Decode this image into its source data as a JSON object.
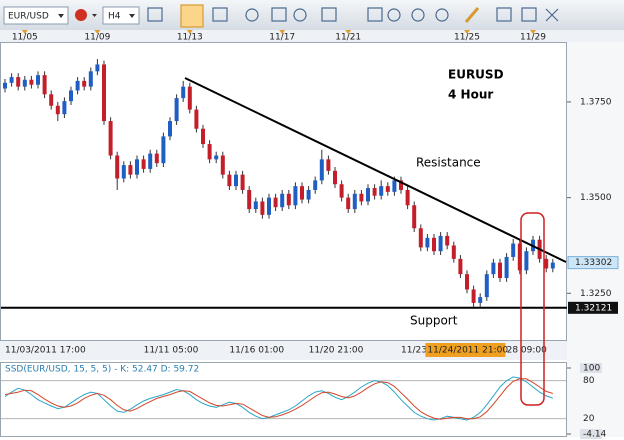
{
  "toolbar": {
    "symbol": "EUR/USD",
    "timeframe": "H4"
  },
  "chart_data": [
    {
      "type": "candlestick",
      "annotations": [
        "EURUSD",
        "4 Hour",
        "Resistance",
        "Support"
      ],
      "categories": [
        "11/03/2011 17:00",
        null,
        null,
        null,
        null,
        null,
        null,
        null,
        null,
        null,
        null,
        null,
        null,
        null,
        null,
        null,
        null,
        null,
        null,
        null,
        null,
        "11/11 05:00",
        null,
        null,
        null,
        null,
        null,
        null,
        null,
        null,
        null,
        null,
        null,
        null,
        "11/16 01:00",
        null,
        null,
        null,
        null,
        null,
        null,
        null,
        null,
        null,
        null,
        null,
        "11/20 21:00",
        null,
        null,
        null,
        null,
        null,
        null,
        null,
        null,
        null,
        null,
        null,
        null,
        null,
        "11/23",
        null,
        null,
        null,
        "11/24/2011 21:00",
        null,
        null,
        null,
        null,
        null,
        null,
        null,
        null,
        null,
        null,
        null,
        "28 09:00",
        null,
        null,
        null,
        null,
        null,
        null,
        null
      ],
      "top_categories": [
        null,
        null,
        null,
        "11/05",
        null,
        null,
        null,
        null,
        null,
        null,
        null,
        null,
        null,
        null,
        "11/09",
        null,
        null,
        null,
        null,
        null,
        null,
        null,
        null,
        null,
        null,
        null,
        null,
        null,
        "11/13",
        null,
        null,
        null,
        null,
        null,
        null,
        null,
        null,
        null,
        null,
        null,
        null,
        null,
        "11/17",
        null,
        null,
        null,
        null,
        null,
        null,
        null,
        null,
        null,
        "11/21",
        null,
        null,
        null,
        null,
        null,
        null,
        null,
        null,
        null,
        null,
        null,
        null,
        null,
        null,
        null,
        null,
        null,
        "11/25",
        null,
        null,
        null,
        null,
        null,
        null,
        null,
        null,
        null,
        "11/29",
        null,
        null,
        null
      ],
      "open": [
        1.3785,
        1.38,
        1.3815,
        1.379,
        1.3808,
        1.3795,
        1.382,
        1.377,
        1.374,
        1.3718,
        1.3752,
        1.378,
        1.3805,
        1.379,
        1.383,
        1.3848,
        1.37,
        1.361,
        1.355,
        1.3585,
        1.356,
        1.36,
        1.3575,
        1.3615,
        1.359,
        1.366,
        1.37,
        1.376,
        1.379,
        1.373,
        1.368,
        1.364,
        1.36,
        1.361,
        1.356,
        1.353,
        1.356,
        1.352,
        1.347,
        1.349,
        1.3455,
        1.35,
        1.3475,
        1.351,
        1.348,
        1.353,
        1.3495,
        1.352,
        1.3545,
        1.36,
        1.357,
        1.3535,
        1.35,
        1.347,
        1.351,
        1.349,
        1.3525,
        1.3505,
        1.353,
        1.3515,
        1.3545,
        1.352,
        1.348,
        1.342,
        1.337,
        1.3395,
        1.336,
        1.34,
        1.3375,
        1.334,
        1.33,
        1.326,
        1.3225,
        1.324,
        1.33,
        1.333,
        1.329,
        1.3345,
        1.338,
        1.331,
        1.336,
        1.339,
        1.334,
        1.3315
      ],
      "high": [
        1.381,
        1.3825,
        1.3825,
        1.3818,
        1.3818,
        1.383,
        1.383,
        1.378,
        1.375,
        1.3762,
        1.379,
        1.3815,
        1.3815,
        1.384,
        1.3862,
        1.3858,
        1.371,
        1.362,
        1.3595,
        1.3595,
        1.361,
        1.361,
        1.3625,
        1.3625,
        1.367,
        1.371,
        1.377,
        1.3805,
        1.38,
        1.374,
        1.369,
        1.365,
        1.362,
        1.362,
        1.357,
        1.357,
        1.357,
        1.353,
        1.35,
        1.35,
        1.351,
        1.351,
        1.352,
        1.352,
        1.354,
        1.354,
        1.353,
        1.3555,
        1.3625,
        1.361,
        1.358,
        1.3545,
        1.351,
        1.352,
        1.352,
        1.3535,
        1.3535,
        1.3545,
        1.354,
        1.3555,
        1.3555,
        1.353,
        1.349,
        1.343,
        1.3405,
        1.3405,
        1.341,
        1.341,
        1.3385,
        1.335,
        1.331,
        1.327,
        1.325,
        1.331,
        1.334,
        1.334,
        1.3355,
        1.3392,
        1.339,
        1.337,
        1.34,
        1.34,
        1.335,
        1.334
      ],
      "low": [
        1.3775,
        1.379,
        1.378,
        1.378,
        1.3785,
        1.3785,
        1.376,
        1.373,
        1.37,
        1.3708,
        1.3742,
        1.377,
        1.378,
        1.378,
        1.382,
        1.369,
        1.36,
        1.352,
        1.354,
        1.355,
        1.355,
        1.3565,
        1.3565,
        1.358,
        1.358,
        1.365,
        1.369,
        1.375,
        1.372,
        1.367,
        1.363,
        1.359,
        1.359,
        1.355,
        1.352,
        1.352,
        1.351,
        1.346,
        1.346,
        1.3445,
        1.3445,
        1.3465,
        1.3465,
        1.347,
        1.347,
        1.3485,
        1.3485,
        1.351,
        1.3535,
        1.356,
        1.3525,
        1.349,
        1.346,
        1.346,
        1.348,
        1.348,
        1.3495,
        1.3495,
        1.3505,
        1.3505,
        1.351,
        1.347,
        1.341,
        1.336,
        1.336,
        1.335,
        1.335,
        1.3365,
        1.333,
        1.329,
        1.325,
        1.321,
        1.3215,
        1.323,
        1.329,
        1.328,
        1.328,
        1.3335,
        1.33,
        1.33,
        1.335,
        1.333,
        1.3305,
        1.3305
      ],
      "close": [
        1.38,
        1.3815,
        1.379,
        1.3808,
        1.3795,
        1.382,
        1.377,
        1.374,
        1.3718,
        1.3752,
        1.378,
        1.3805,
        1.379,
        1.383,
        1.3848,
        1.37,
        1.361,
        1.355,
        1.3585,
        1.356,
        1.36,
        1.3575,
        1.3615,
        1.359,
        1.366,
        1.37,
        1.376,
        1.379,
        1.373,
        1.368,
        1.364,
        1.36,
        1.361,
        1.356,
        1.353,
        1.356,
        1.352,
        1.347,
        1.349,
        1.3455,
        1.35,
        1.3475,
        1.351,
        1.348,
        1.353,
        1.3495,
        1.352,
        1.3545,
        1.36,
        1.357,
        1.3535,
        1.35,
        1.347,
        1.351,
        1.349,
        1.3525,
        1.3505,
        1.353,
        1.3515,
        1.3545,
        1.352,
        1.348,
        1.342,
        1.337,
        1.3395,
        1.336,
        1.34,
        1.3375,
        1.334,
        1.33,
        1.326,
        1.3225,
        1.324,
        1.33,
        1.333,
        1.329,
        1.3345,
        1.338,
        1.331,
        1.336,
        1.339,
        1.334,
        1.3315,
        1.33302
      ],
      "up_color": "#1f5fc4",
      "down_color": "#c41e2a",
      "ylim": [
        1.3128,
        1.3904
      ],
      "yticks": [
        {
          "value": 1.325,
          "label": "1.3250"
        },
        {
          "value": 1.35,
          "label": "1.3500"
        },
        {
          "value": 1.375,
          "label": "1.3750"
        }
      ],
      "current_price": 1.33302,
      "support_level": 1.32121,
      "grid": false
    },
    {
      "type": "line",
      "title": "SSD(EUR/USD, 15, 5, 5) - K: 52.47   D: 59.72",
      "series": [
        {
          "color": "#2aa6c8",
          "values": [
            55,
            62,
            68,
            65,
            58,
            50,
            45,
            40,
            36,
            38,
            45,
            52,
            58,
            62,
            60,
            50,
            40,
            32,
            30,
            35,
            42,
            48,
            52,
            55,
            58,
            62,
            66,
            64,
            58,
            50,
            44,
            40,
            38,
            42,
            46,
            44,
            38,
            30,
            24,
            20,
            22,
            26,
            30,
            34,
            40,
            48,
            56,
            62,
            64,
            60,
            54,
            50,
            55,
            62,
            70,
            76,
            80,
            78,
            72,
            62,
            50,
            40,
            30,
            24,
            20,
            18,
            20,
            24,
            22,
            20,
            18,
            22,
            30,
            42,
            56,
            70,
            80,
            86,
            84,
            78,
            70,
            62,
            56,
            52.47
          ]
        },
        {
          "color": "#d2462a",
          "values": [
            58,
            60,
            62,
            65,
            64,
            58,
            51,
            45,
            40,
            38,
            40,
            45,
            52,
            57,
            60,
            57,
            50,
            41,
            34,
            32,
            36,
            42,
            47,
            52,
            55,
            58,
            62,
            64,
            63,
            57,
            51,
            45,
            41,
            40,
            42,
            44,
            43,
            37,
            31,
            25,
            22,
            23,
            26,
            30,
            35,
            41,
            48,
            55,
            61,
            62,
            59,
            55,
            53,
            56,
            62,
            69,
            75,
            78,
            77,
            71,
            61,
            51,
            40,
            31,
            25,
            21,
            19,
            21,
            22,
            22,
            20,
            20,
            23,
            31,
            43,
            56,
            69,
            79,
            83,
            83,
            77,
            70,
            63,
            59.72
          ]
        }
      ],
      "ylim": [
        -4.14,
        100
      ],
      "yticks": [
        -4.14,
        20,
        80,
        100
      ]
    }
  ]
}
